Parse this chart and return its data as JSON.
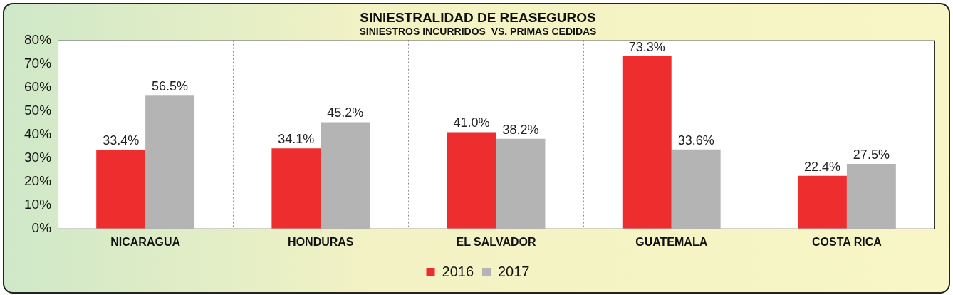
{
  "chart_data": {
    "type": "bar",
    "title": "SINIESTRALIDAD DE REASEGUROS",
    "subtitle": "SINIESTROS INCURRIDOS  VS. PRIMAS CEDIDAS",
    "categories": [
      "NICARAGUA",
      "HONDURAS",
      "EL SALVADOR",
      "GUATEMALA",
      "COSTA RICA"
    ],
    "series": [
      {
        "name": "2016",
        "color": "#ee2e2e",
        "values": [
          33.4,
          34.1,
          41.0,
          73.3,
          22.4
        ]
      },
      {
        "name": "2017",
        "color": "#b4b4b4",
        "values": [
          56.5,
          45.2,
          38.2,
          33.6,
          27.5
        ]
      }
    ],
    "ylim": [
      0,
      80
    ],
    "yticks": [
      {
        "value": 0,
        "label": "0%"
      },
      {
        "value": 10,
        "label": "10%"
      },
      {
        "value": 20,
        "label": "20%"
      },
      {
        "value": 30,
        "label": "30%"
      },
      {
        "value": 40,
        "label": "40%"
      },
      {
        "value": 50,
        "label": "50%"
      },
      {
        "value": 60,
        "label": "60%"
      },
      {
        "value": 70,
        "label": "70%"
      },
      {
        "value": 80,
        "label": "80%"
      }
    ],
    "value_labels": [
      [
        "33.4%",
        "34.1%",
        "41.0%",
        "73.3%",
        "22.4%"
      ],
      [
        "56.5%",
        "45.2%",
        "38.2%",
        "33.6%",
        "27.5%"
      ]
    ],
    "grid": "x",
    "legend": "bottom"
  }
}
